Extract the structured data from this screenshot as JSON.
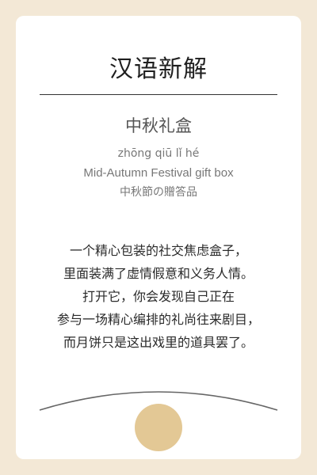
{
  "card": {
    "title": "汉语新解",
    "term": "中秋礼盒",
    "pinyin": "zhōng qiū lǐ hé",
    "english": "Mid-Autumn Festival gift box",
    "japanese": "中秋節の贈答品",
    "definition_lines": [
      "一个精心包装的社交焦虑盒子，",
      "里面装满了虚情假意和义务人情。",
      "打开它，你会发现自己正在",
      "参与一场精心编排的礼尚往来剧目，",
      "而月饼只是这出戏里的道具罢了。"
    ]
  },
  "colors": {
    "page_background": "#f3e8d6",
    "card_background": "#ffffff",
    "moon": "#e3c895",
    "arc": "#666666"
  }
}
